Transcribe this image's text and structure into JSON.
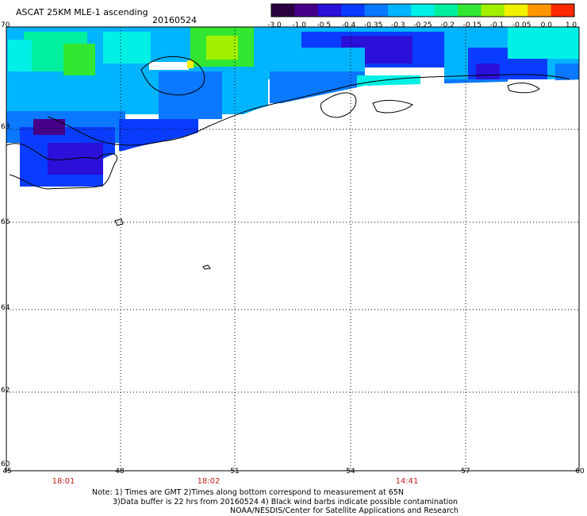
{
  "header": {
    "title": "ASCAT 25KM MLE-1 ascending",
    "date": "20160524"
  },
  "colorbar": {
    "labels": [
      "-3.0",
      "-1.0",
      "-0.5",
      "-0.4",
      "-0.35",
      "-0.3",
      "-0.25",
      "-0.2",
      "-0.15",
      "-0.1",
      "-0.05",
      "0.0",
      "1.0"
    ],
    "colors": [
      "#2a0040",
      "#46008a",
      "#2a10d8",
      "#0a3cff",
      "#0a78ff",
      "#00b4ff",
      "#00f0e6",
      "#00f0a0",
      "#32e632",
      "#a0f000",
      "#f0f000",
      "#ff9600",
      "#ff2a00"
    ]
  },
  "map": {
    "lat_labels": [
      "70",
      "68",
      "66",
      "64",
      "62",
      "60"
    ],
    "lon_labels": [
      "45",
      "48",
      "51",
      "54",
      "57",
      "60"
    ],
    "lat_range": [
      60,
      70
    ],
    "lon_range": [
      45,
      60
    ],
    "grid": true
  },
  "times": [
    "18:01",
    "18:02",
    "14:41"
  ],
  "notes": {
    "line1": "Note: 1) Times are GMT 2)Times along bottom correspond to measurement at 65N",
    "line2": "3)Data buffer is 22 hrs from 20160524 4) Black wind barbs indicate possible contamination",
    "line3": "NOAA/NESDIS/Center for Satellite Applications and Research"
  }
}
